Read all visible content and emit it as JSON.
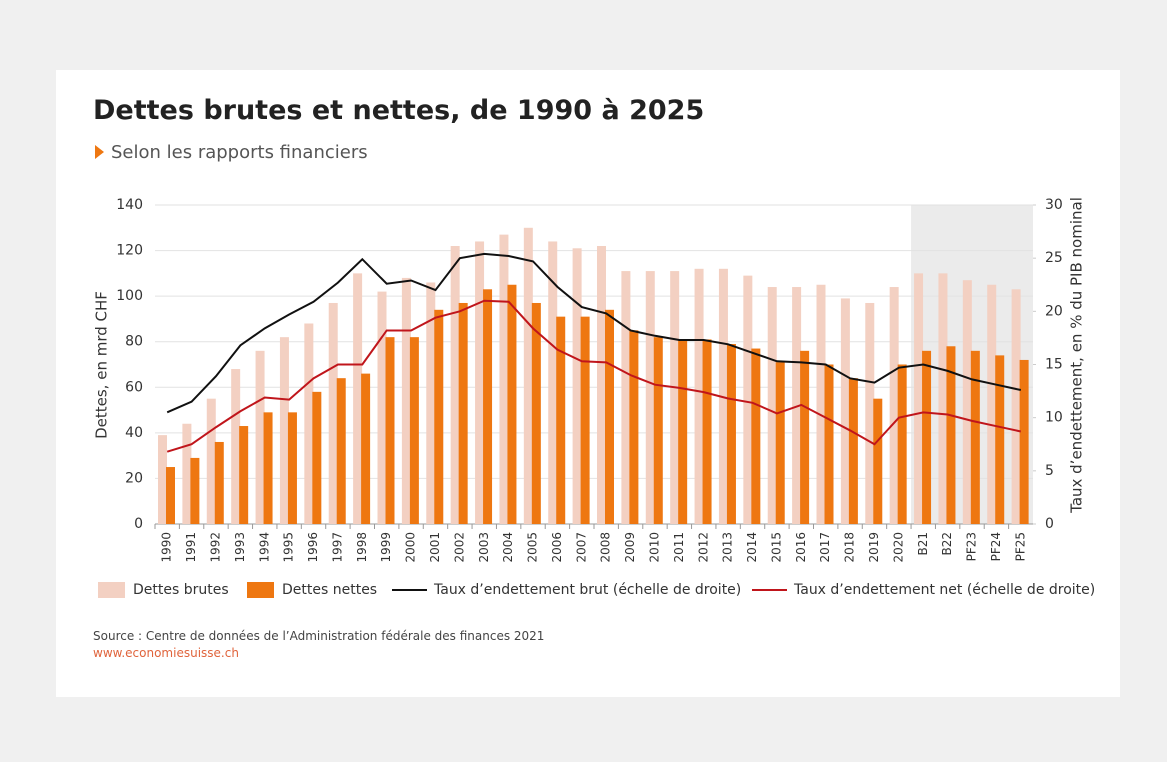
{
  "chart_data": {
    "type": "bar",
    "title": "Dettes brutes et nettes, de 1990 à 2025",
    "subtitle": "Selon les rapports financiers",
    "ylabel": "Dettes, en mrd CHF",
    "y2label": "Taux d’endettement, en % du PIB nominal",
    "source": "Source : Centre de données de l’Administration fédérale des finances 2021",
    "website": "www.economiesuisse.ch",
    "categories": [
      "1990",
      "1991",
      "1992",
      "1993",
      "1994",
      "1995",
      "1996",
      "1997",
      "1998",
      "1999",
      "2000",
      "2001",
      "2002",
      "2003",
      "2004",
      "2005",
      "2006",
      "2007",
      "2008",
      "2009",
      "2010",
      "2011",
      "2012",
      "2013",
      "2014",
      "2015",
      "2016",
      "2017",
      "2018",
      "2019",
      "2020",
      "B21",
      "B22",
      "PF23",
      "PF24",
      "PF25"
    ],
    "forecast_start": "B21",
    "ylim": [
      0,
      140
    ],
    "yticks": [
      0,
      20,
      40,
      60,
      80,
      100,
      120,
      140
    ],
    "y2lim": [
      0,
      30
    ],
    "y2ticks": [
      0,
      5,
      10,
      15,
      20,
      25,
      30
    ],
    "grid": true,
    "series": [
      {
        "name": "Dettes brutes",
        "type": "bar",
        "color": "#f3d0c2",
        "values": [
          39,
          44,
          55,
          68,
          76,
          82,
          88,
          97,
          110,
          102,
          108,
          106,
          122,
          124,
          127,
          130,
          124,
          121,
          122,
          111,
          111,
          111,
          112,
          112,
          109,
          104,
          104,
          105,
          99,
          97,
          104,
          110,
          110,
          107,
          105,
          103
        ]
      },
      {
        "name": "Dettes nettes",
        "type": "bar",
        "color": "#ee7711",
        "values": [
          25,
          29,
          36,
          43,
          49,
          49,
          58,
          64,
          66,
          82,
          82,
          94,
          97,
          103,
          105,
          97,
          91,
          91,
          94,
          85,
          82,
          81,
          81,
          79,
          77,
          71,
          76,
          70,
          64,
          55,
          70,
          76,
          78,
          76,
          74,
          72
        ]
      },
      {
        "name": "Taux d’endettement brut (échelle de droite)",
        "type": "line",
        "axis": "y2",
        "color": "#111111",
        "values": [
          10.5,
          11.5,
          13.9,
          16.8,
          18.4,
          19.7,
          20.9,
          22.7,
          24.9,
          22.6,
          22.9,
          22.0,
          25.0,
          25.4,
          25.2,
          24.7,
          22.3,
          20.4,
          19.8,
          18.2,
          17.7,
          17.3,
          17.3,
          16.9,
          16.1,
          15.3,
          15.2,
          15.0,
          13.7,
          13.3,
          14.7,
          15.0,
          14.4,
          13.6,
          13.1,
          12.6
        ]
      },
      {
        "name": "Taux d’endettement net (échelle de droite)",
        "type": "line",
        "axis": "y2",
        "color": "#c0151b",
        "values": [
          6.8,
          7.5,
          9.1,
          10.6,
          11.9,
          11.7,
          13.7,
          15.0,
          15.0,
          18.2,
          18.2,
          19.4,
          20.0,
          21.0,
          20.9,
          18.4,
          16.4,
          15.3,
          15.2,
          14.0,
          13.1,
          12.8,
          12.4,
          11.8,
          11.4,
          10.4,
          11.2,
          10.0,
          8.8,
          7.5,
          10.0,
          10.5,
          10.3,
          9.7,
          9.2,
          8.7
        ]
      }
    ]
  }
}
